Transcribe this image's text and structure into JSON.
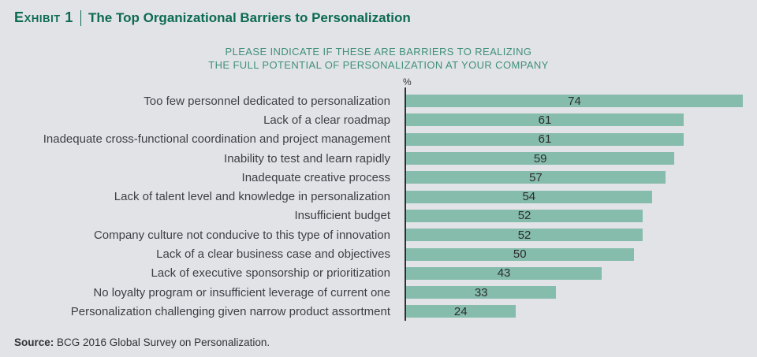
{
  "exhibit": {
    "label": "Exhibit 1",
    "title": "The Top Organizational Barriers to Personalization"
  },
  "chart_data": {
    "type": "bar",
    "orientation": "horizontal",
    "title": "PLEASE INDICATE IF THESE ARE BARRIERS TO REALIZING THE FULL POTENTIAL OF PERSONALIZATION AT YOUR COMPANY",
    "title_lines": [
      "PLEASE INDICATE IF THESE ARE BARRIERS TO REALIZING",
      "THE FULL POTENTIAL OF PERSONALIZATION AT YOUR COMPANY"
    ],
    "unit_label": "%",
    "categories": [
      "Too few personnel dedicated to personalization",
      "Lack of a clear roadmap",
      "Inadequate cross-functional coordination and project management",
      "Inability to test and learn rapidly",
      "Inadequate creative process",
      "Lack of talent level and knowledge in personalization",
      "Insufficient budget",
      "Company culture not conducive to this type of innovation",
      "Lack of a clear business case and objectives",
      "Lack of executive sponsorship or prioritization",
      "No loyalty program or insufficient leverage of current one",
      "Personalization challenging given narrow product assortment"
    ],
    "values": [
      74,
      61,
      61,
      59,
      57,
      54,
      52,
      52,
      50,
      43,
      33,
      24
    ],
    "value_labels_position": "inside-center",
    "legend": "none",
    "grid": "off",
    "colors": {
      "bar": "#85bcac",
      "axis": "#2e2e32",
      "title": "#0c6b53",
      "subtitle": "#40907a",
      "background": "#e2e3e7"
    }
  },
  "source": {
    "prefix": "Source:",
    "text": " BCG 2016 Global Survey on Personalization."
  }
}
